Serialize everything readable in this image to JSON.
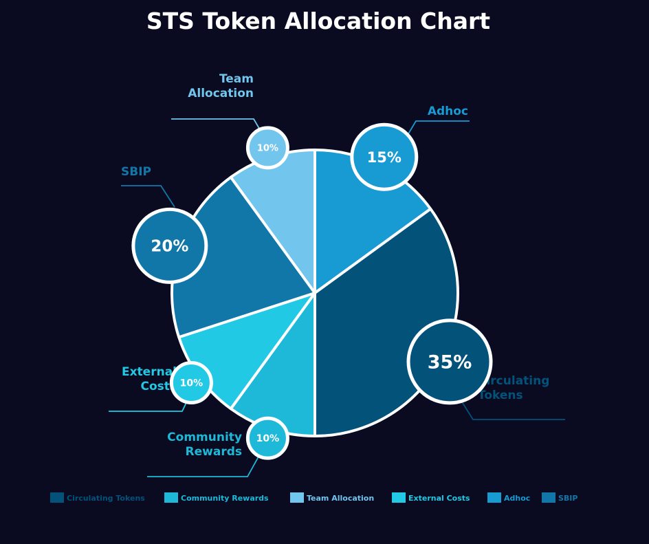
{
  "chart_data": {
    "type": "pie",
    "title": "STS Token Allocation Chart",
    "unit": "%",
    "legend_position": "bottom",
    "slices": [
      {
        "label": "Circulating Tokens",
        "callout": [
          "Circulating",
          "Tokens"
        ],
        "value": 35,
        "display": "35%",
        "color": "#03527a"
      },
      {
        "label": "Community Rewards",
        "callout": [
          "Community",
          "Rewards"
        ],
        "value": 10,
        "display": "10%",
        "color": "#1eb8d8"
      },
      {
        "label": "External Costs",
        "callout": [
          "External",
          "Costs"
        ],
        "value": 10,
        "display": "10%",
        "color": "#22c9e4"
      },
      {
        "label": "SBIP",
        "callout": [
          "SBIP"
        ],
        "value": 20,
        "display": "20%",
        "color": "#1177a8"
      },
      {
        "label": "Team Allocation",
        "callout": [
          "Team",
          "Allocation"
        ],
        "value": 10,
        "display": "10%",
        "color": "#72c5ec"
      },
      {
        "label": "Adhoc",
        "callout": [
          "Adhoc"
        ],
        "value": 15,
        "display": "15%",
        "color": "#189bd3"
      }
    ],
    "legend": [
      {
        "label": "Circulating Tokens",
        "color": "#03527a"
      },
      {
        "label": "Community Rewards",
        "color": "#1eb8d8"
      },
      {
        "label": "Team Allocation",
        "color": "#72c5ec"
      },
      {
        "label": "External Costs",
        "color": "#22c9e4"
      },
      {
        "label": "Adhoc",
        "color": "#189bd3"
      },
      {
        "label": "SBIP",
        "color": "#1177a8"
      }
    ]
  }
}
